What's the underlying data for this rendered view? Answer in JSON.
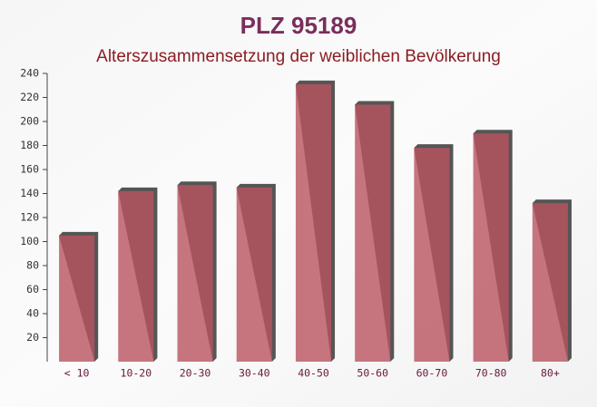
{
  "chart_data": {
    "type": "bar",
    "title": "PLZ 95189",
    "subtitle": "Alterszusammensetzung der weiblichen Bevölkerung",
    "categories": [
      "< 10",
      "10-20",
      "20-30",
      "30-40",
      "40-50",
      "50-60",
      "60-70",
      "70-80",
      "80+"
    ],
    "values": [
      105,
      142,
      147,
      145,
      231,
      214,
      178,
      190,
      132
    ],
    "color": "#b9545f",
    "ylim": [
      0,
      240
    ],
    "yticks": [
      20,
      40,
      60,
      80,
      100,
      120,
      140,
      160,
      180,
      200,
      220,
      240
    ]
  }
}
